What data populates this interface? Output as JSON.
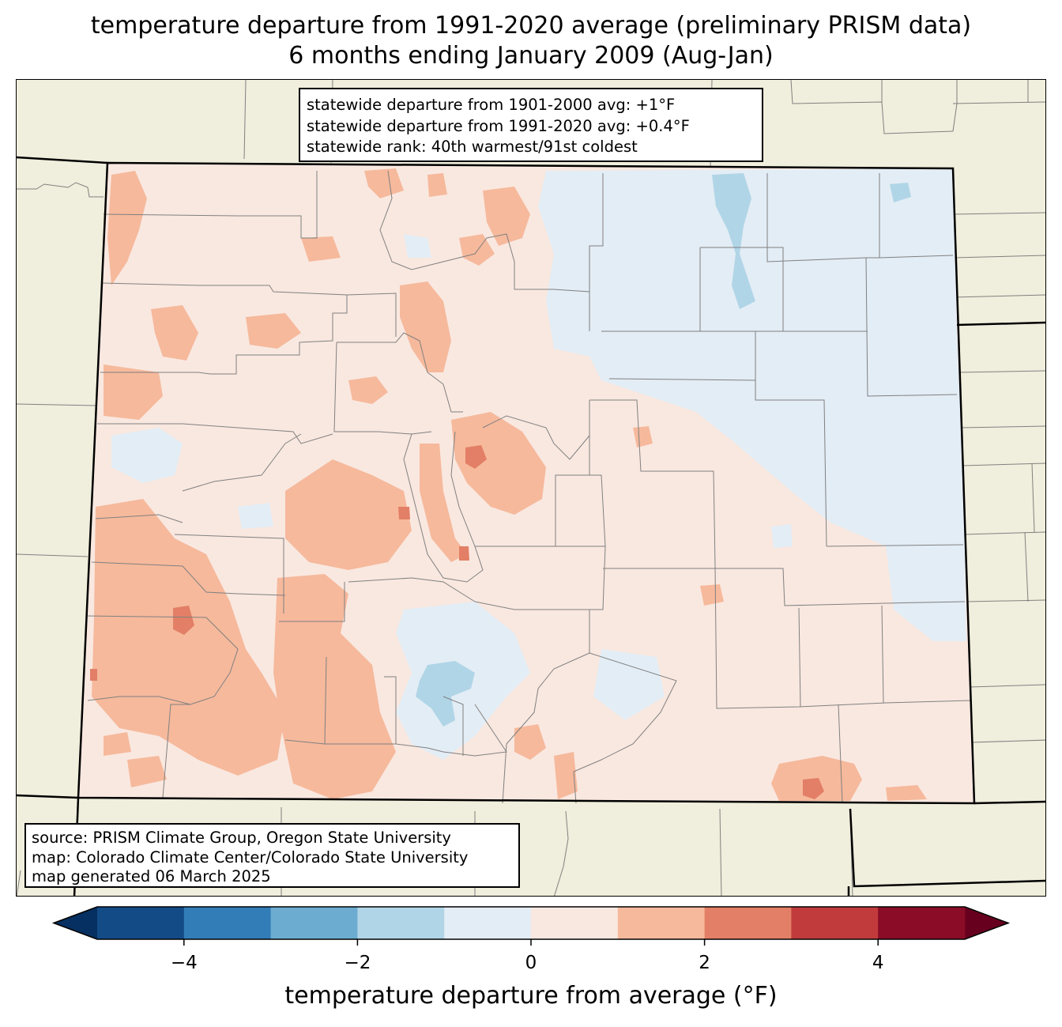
{
  "title": {
    "line1": "temperature departure from 1991-2020 average (preliminary PRISM data)",
    "line2": "6 months ending January 2009 (Aug-Jan)"
  },
  "stats": {
    "line1": "statewide departure from 1901-2000 avg: +1°F",
    "line2": "statewide departure from 1991-2020 avg: +0.4°F",
    "line3": "statewide rank: 40th warmest/91st coldest"
  },
  "source": {
    "line1": "source: PRISM Climate Group, Oregon State University",
    "line2": "map: Colorado Climate Center/Colorado State University",
    "line3": "map generated 06 March 2025"
  },
  "colorbar": {
    "title": "temperature departure from average (°F)",
    "ticks": [
      "−4",
      "−2",
      "0",
      "2",
      "4"
    ],
    "tick_values": [
      -4,
      -2,
      0,
      2,
      4
    ],
    "range": [
      -5,
      5
    ],
    "extend": "both",
    "under_color": "#053061",
    "over_color": "#67001f",
    "bins": [
      {
        "from": -5,
        "to": -4,
        "color": "#134b87"
      },
      {
        "from": -4,
        "to": -3,
        "color": "#327db7"
      },
      {
        "from": -3,
        "to": -2,
        "color": "#6bacd0"
      },
      {
        "from": -2,
        "to": -1,
        "color": "#b0d5e7"
      },
      {
        "from": -1,
        "to": 0,
        "color": "#e3edf5"
      },
      {
        "from": 0,
        "to": 1,
        "color": "#f9e8e0"
      },
      {
        "from": 1,
        "to": 2,
        "color": "#f6b99c"
      },
      {
        "from": 2,
        "to": 3,
        "color": "#e27f66"
      },
      {
        "from": 3,
        "to": 4,
        "color": "#c13b3c"
      },
      {
        "from": 4,
        "to": 5,
        "color": "#8a0c27"
      }
    ]
  },
  "map_colors": {
    "background": "#f0eedc",
    "state_fill": "#f9e8e0",
    "cool_fill": "#e3edf5",
    "cooler_fill": "#b0d5e7",
    "warm_fill": "#f6b99c",
    "warmer_fill": "#e27f66",
    "county_line": "#808080",
    "state_line": "#000000"
  }
}
